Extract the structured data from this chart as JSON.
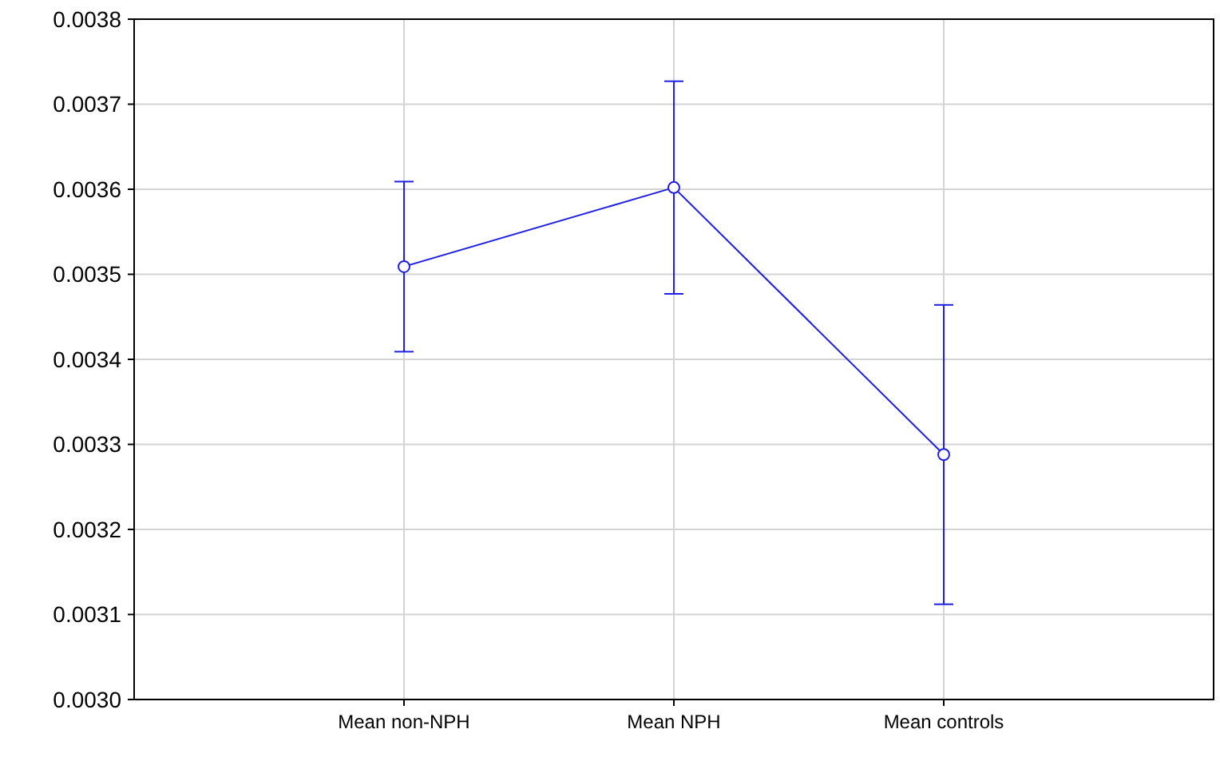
{
  "chart_data": {
    "type": "line",
    "categories": [
      "Mean non-NPH",
      "Mean NPH",
      "Mean controls"
    ],
    "series": [
      {
        "color": "#1f1fe6",
        "values": [
          0.003509,
          0.003602,
          0.003288
        ],
        "errors": [
          0.0001,
          0.000125,
          0.000176
        ]
      }
    ],
    "ylim": [
      0.003,
      0.0038
    ],
    "yticks": [
      {
        "value": 0.003,
        "label": "0.0030"
      },
      {
        "value": 0.0031,
        "label": "0.0031"
      },
      {
        "value": 0.0032,
        "label": "0.0032"
      },
      {
        "value": 0.0033,
        "label": "0.0033"
      },
      {
        "value": 0.0034,
        "label": "0.0034"
      },
      {
        "value": 0.0035,
        "label": "0.0035"
      },
      {
        "value": 0.0036,
        "label": "0.0036"
      },
      {
        "value": 0.0037,
        "label": "0.0037"
      },
      {
        "value": 0.0038,
        "label": "0.0038"
      }
    ],
    "grid": true,
    "marker": "circle",
    "line_style": "solid"
  }
}
